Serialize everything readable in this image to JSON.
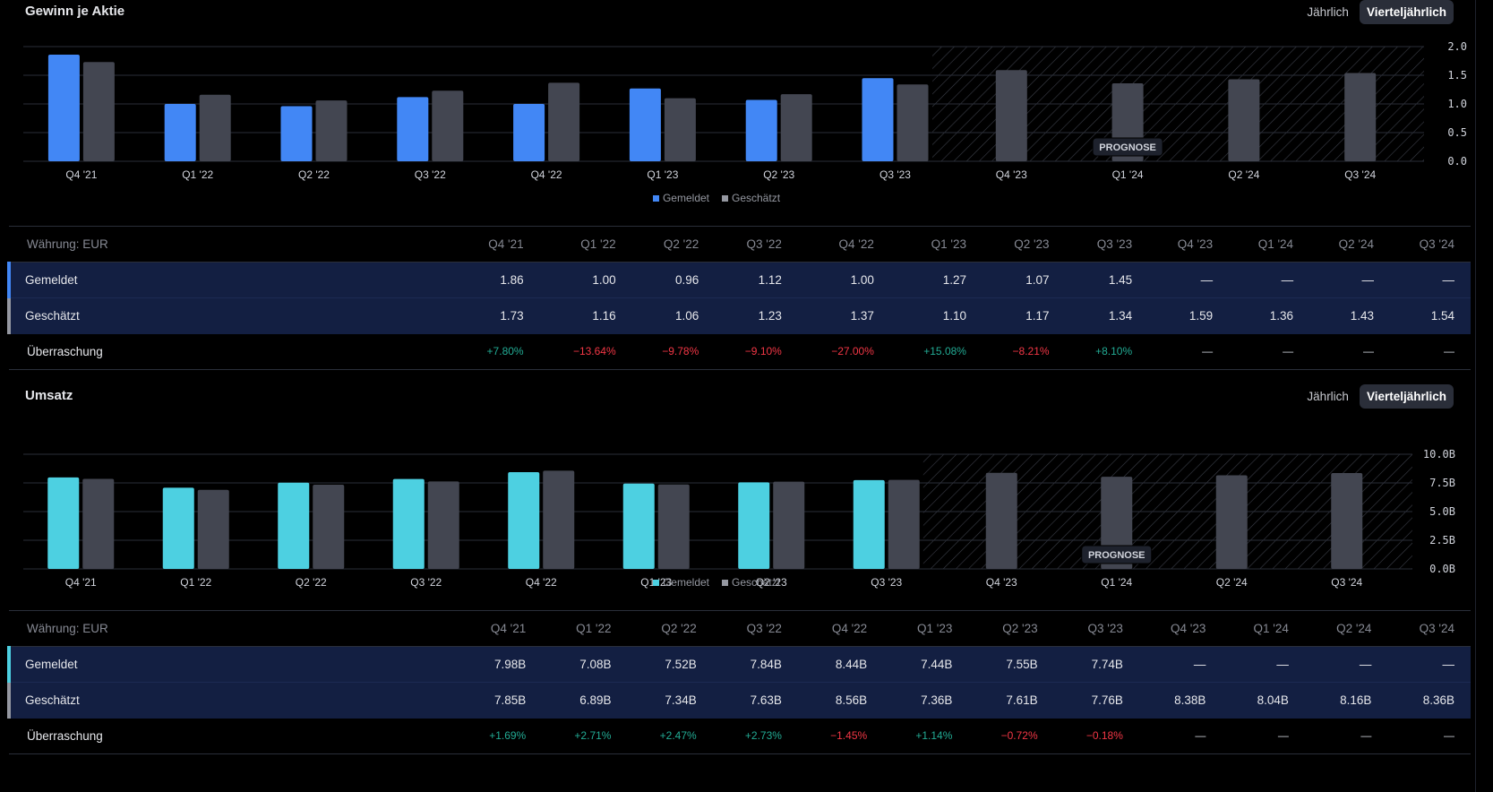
{
  "colors": {
    "eps_reported": "#4287f5",
    "revenue_reported": "#4dd0e1",
    "estimated": "#434651",
    "positive": "#22ab94",
    "negative": "#f23645"
  },
  "eps": {
    "title": "Gewinn je Aktie",
    "toggle": {
      "annual": "Jährlich",
      "quarterly": "Vierteljährlich",
      "active": "quarterly"
    },
    "forecast_label": "PROGNOSE",
    "legend": {
      "reported": "Gemeldet",
      "estimated": "Geschätzt"
    },
    "table": {
      "currency_label": "Währung: EUR",
      "row_reported": "Gemeldet",
      "row_estimated": "Geschätzt",
      "row_surprise": "Überraschung",
      "periods": [
        "Q4 '21",
        "Q1 '22",
        "Q2 '22",
        "Q3 '22",
        "Q4 '22",
        "Q1 '23",
        "Q2 '23",
        "Q3 '23",
        "Q4 '23",
        "Q1 '24",
        "Q2 '24",
        "Q3 '24"
      ],
      "reported": [
        "1.86",
        "1.00",
        "0.96",
        "1.12",
        "1.00",
        "1.27",
        "1.07",
        "1.45",
        "—",
        "—",
        "—",
        "—"
      ],
      "estimated": [
        "1.73",
        "1.16",
        "1.06",
        "1.23",
        "1.37",
        "1.10",
        "1.17",
        "1.34",
        "1.59",
        "1.36",
        "1.43",
        "1.54"
      ],
      "surprise": [
        "+7.80%",
        "−13.64%",
        "−9.78%",
        "−9.10%",
        "−27.00%",
        "+15.08%",
        "−8.21%",
        "+8.10%",
        "—",
        "—",
        "—",
        "—"
      ]
    }
  },
  "revenue": {
    "title": "Umsatz",
    "toggle": {
      "annual": "Jährlich",
      "quarterly": "Vierteljährlich",
      "active": "quarterly"
    },
    "forecast_label": "PROGNOSE",
    "legend": {
      "reported": "Gemeldet",
      "estimated": "Geschätzt"
    },
    "table": {
      "currency_label": "Währung: EUR",
      "row_reported": "Gemeldet",
      "row_estimated": "Geschätzt",
      "row_surprise": "Überraschung",
      "periods": [
        "Q4 '21",
        "Q1 '22",
        "Q2 '22",
        "Q3 '22",
        "Q4 '22",
        "Q1 '23",
        "Q2 '23",
        "Q3 '23",
        "Q4 '23",
        "Q1 '24",
        "Q2 '24",
        "Q3 '24"
      ],
      "reported": [
        "7.98B",
        "7.08B",
        "7.52B",
        "7.84B",
        "8.44B",
        "7.44B",
        "7.55B",
        "7.74B",
        "—",
        "—",
        "—",
        "—"
      ],
      "estimated": [
        "7.85B",
        "6.89B",
        "7.34B",
        "7.63B",
        "8.56B",
        "7.36B",
        "7.61B",
        "7.76B",
        "8.38B",
        "8.04B",
        "8.16B",
        "8.36B"
      ],
      "surprise": [
        "+1.69%",
        "+2.71%",
        "+2.47%",
        "+2.73%",
        "−1.45%",
        "+1.14%",
        "−0.72%",
        "−0.18%",
        "—",
        "—",
        "—",
        "—"
      ]
    }
  },
  "chart_data": [
    {
      "type": "bar",
      "title": "Gewinn je Aktie",
      "categories": [
        "Q4 '21",
        "Q1 '22",
        "Q2 '22",
        "Q3 '22",
        "Q4 '22",
        "Q1 '23",
        "Q2 '23",
        "Q3 '23",
        "Q4 '23",
        "Q1 '24",
        "Q2 '24",
        "Q3 '24"
      ],
      "series": [
        {
          "name": "Gemeldet",
          "values": [
            1.86,
            1.0,
            0.96,
            1.12,
            1.0,
            1.27,
            1.07,
            1.45,
            null,
            null,
            null,
            null
          ]
        },
        {
          "name": "Geschätzt",
          "values": [
            1.73,
            1.16,
            1.06,
            1.23,
            1.37,
            1.1,
            1.17,
            1.34,
            1.59,
            1.36,
            1.43,
            1.54
          ]
        }
      ],
      "forecast_from": "Q4 '23",
      "yticks": [
        "0.0",
        "0.5",
        "1.0",
        "1.5",
        "2.0"
      ],
      "ylim": [
        0,
        2.0
      ],
      "xlabel": "",
      "ylabel": "",
      "grid": true,
      "legend_position": "bottom-center"
    },
    {
      "type": "bar",
      "title": "Umsatz",
      "categories": [
        "Q4 '21",
        "Q1 '22",
        "Q2 '22",
        "Q3 '22",
        "Q4 '22",
        "Q1 '23",
        "Q2 '23",
        "Q3 '23",
        "Q4 '23",
        "Q1 '24",
        "Q2 '24",
        "Q3 '24"
      ],
      "series": [
        {
          "name": "Gemeldet",
          "values": [
            7.98,
            7.08,
            7.52,
            7.84,
            8.44,
            7.44,
            7.55,
            7.74,
            null,
            null,
            null,
            null
          ]
        },
        {
          "name": "Geschätzt",
          "values": [
            7.85,
            6.89,
            7.34,
            7.63,
            8.56,
            7.36,
            7.61,
            7.76,
            8.38,
            8.04,
            8.16,
            8.36
          ]
        }
      ],
      "units": "B EUR",
      "forecast_from": "Q4 '23",
      "yticks": [
        "0.0B",
        "2.5B",
        "5.0B",
        "7.5B",
        "10.0B"
      ],
      "ylim": [
        0,
        10.0
      ],
      "xlabel": "",
      "ylabel": "",
      "grid": true,
      "legend_position": "bottom-center"
    }
  ]
}
